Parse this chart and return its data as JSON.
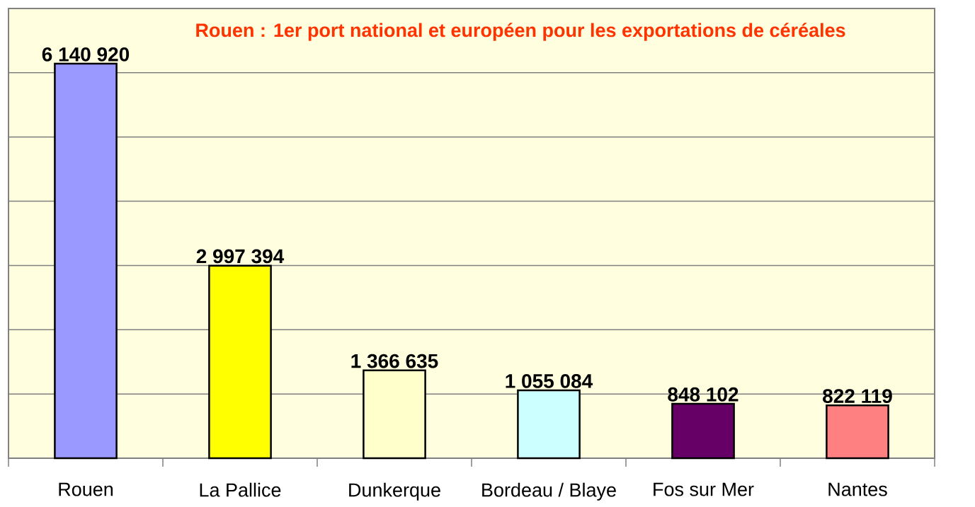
{
  "chart_data": {
    "type": "bar",
    "title": "Rouen : 1er port national et européen pour les exportations de céréales",
    "categories": [
      "Rouen",
      "La Pallice",
      "Dunkerque",
      "Bordeau / Blaye",
      "Fos sur Mer",
      "Nantes"
    ],
    "values": [
      6140920,
      2997394,
      1366635,
      1055084,
      848102,
      822119
    ],
    "value_labels": [
      "6 140 920",
      "2 997 394",
      "1 366 635",
      "1 055 084",
      "848 102",
      "822 119"
    ],
    "colors": [
      "#9999ff",
      "#ffff00",
      "#ffffcc",
      "#ccffff",
      "#660066",
      "#ff8080"
    ],
    "ylim": [
      0,
      7000000
    ],
    "yticks": [
      {
        "value": 0,
        "label": null
      },
      {
        "value": 1000000,
        "label": null
      },
      {
        "value": 2000000,
        "label": null
      },
      {
        "value": 3000000,
        "label": null
      },
      {
        "value": 4000000,
        "label": null
      },
      {
        "value": 5000000,
        "label": null
      },
      {
        "value": 6000000,
        "label": null
      },
      {
        "value": 7000000,
        "label": null
      }
    ],
    "grid": "y",
    "tick_labels": "x"
  }
}
